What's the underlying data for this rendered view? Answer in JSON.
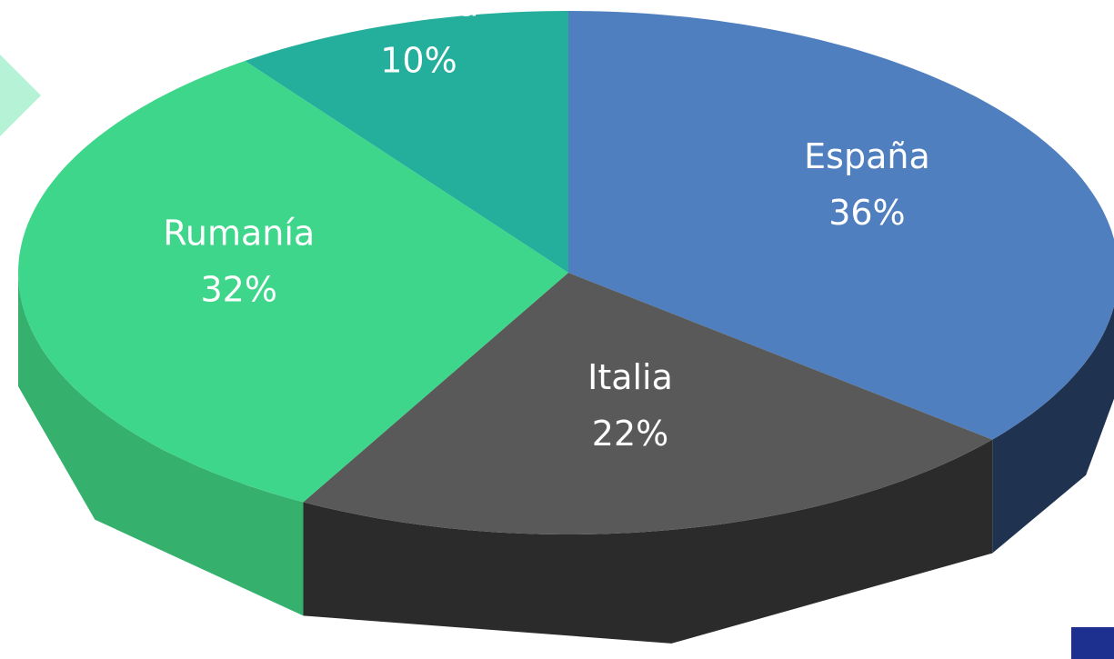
{
  "chart_data": {
    "type": "pie",
    "categories": [
      "España",
      "Italia",
      "Rumanía",
      "Irlanda"
    ],
    "values": [
      36,
      22,
      32,
      10
    ],
    "value_labels": [
      "36%",
      "22%",
      "32%",
      "10%"
    ],
    "colors": [
      "#4f7fbf",
      "#595959",
      "#3ed68a",
      "#24ae9c"
    ],
    "side_colors": [
      "#1f3350",
      "#2b2b2b",
      "#35b06d",
      "#1c8a7c"
    ]
  }
}
